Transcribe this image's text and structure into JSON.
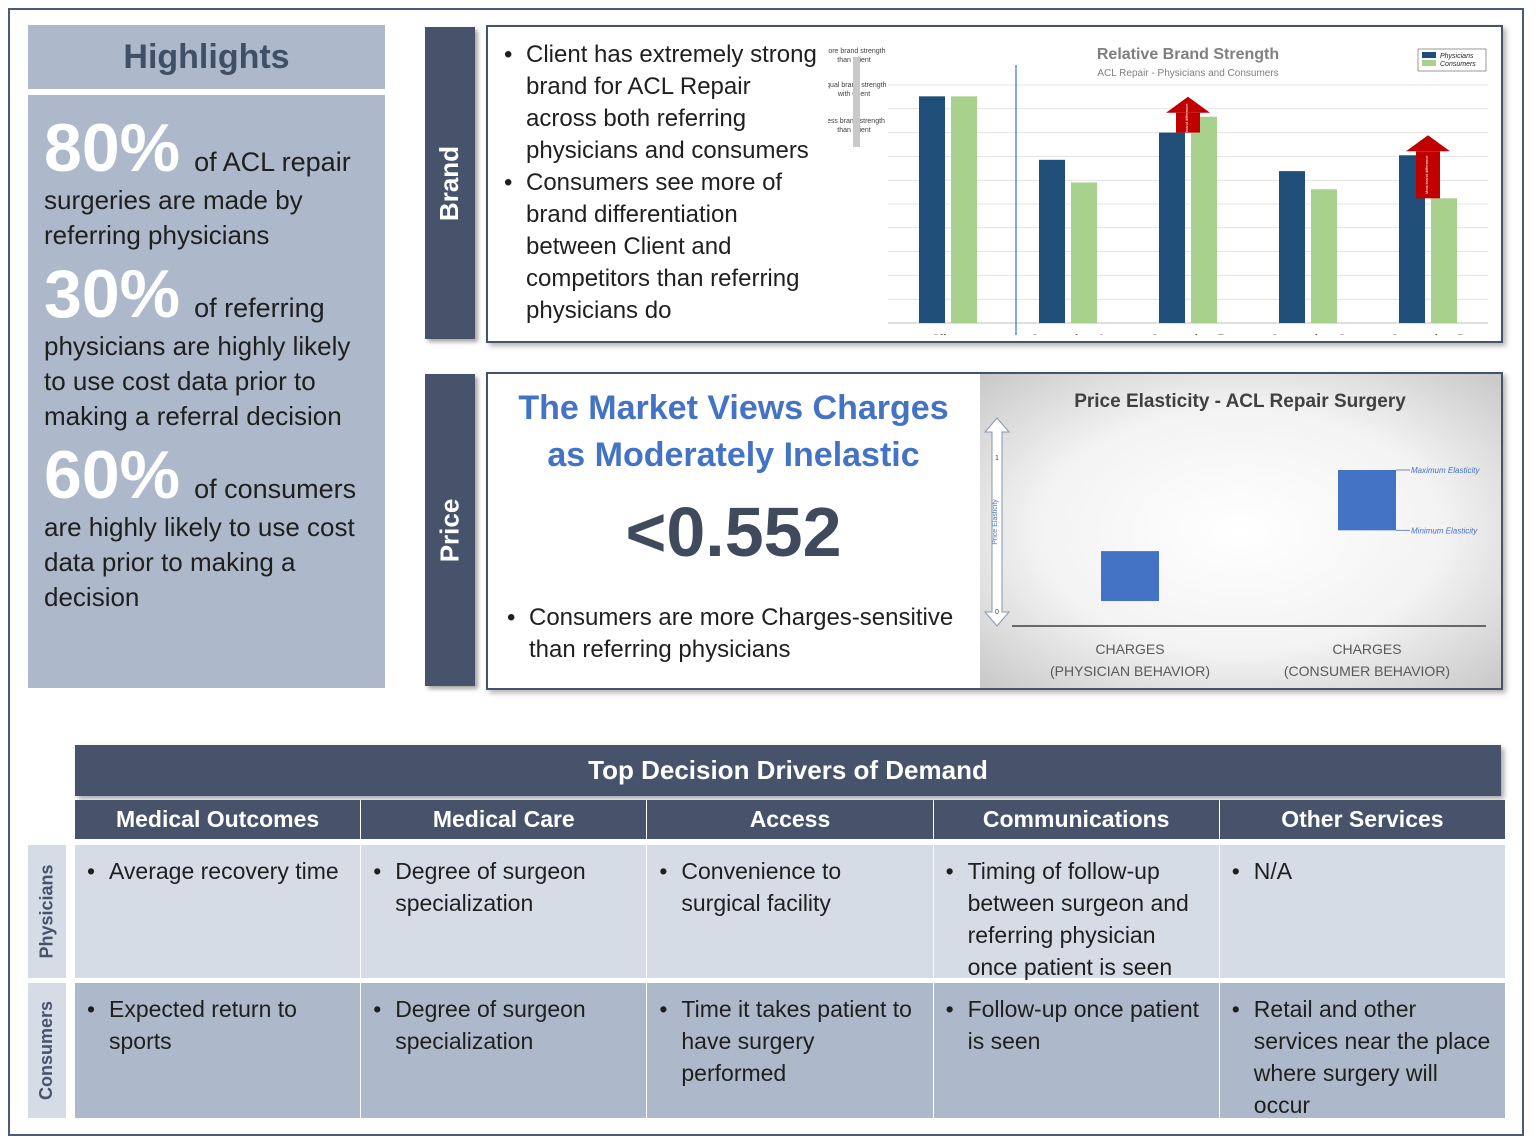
{
  "highlights": {
    "title": "Highlights",
    "stats": [
      {
        "value": "80%",
        "lead": "of ACL repair",
        "rest": "surgeries are made by referring physicians"
      },
      {
        "value": "30%",
        "lead": "of  referring",
        "rest": "physicians are highly likely to use cost data prior to making a referral decision"
      },
      {
        "value": "60%",
        "lead": "of consumers",
        "rest": "are highly likely to use cost data prior to making a decision"
      }
    ]
  },
  "brand": {
    "tab": "Brand",
    "bullets": [
      "Client has extremely strong brand for ACL Repair across both referring physicians and consumers",
      "Consumers see more of brand differentiation between Client and competitors than referring physicians do"
    ]
  },
  "price": {
    "tab": "Price",
    "title_line1": "The Market Views Charges",
    "title_line2": "as Moderately Inelastic",
    "value": "<0.552",
    "bullets": [
      "Consumers are more Charges-sensitive than referring physicians"
    ]
  },
  "chart_data": [
    {
      "type": "bar",
      "title": "Relative Brand Strength",
      "subtitle": "ACL Repair - Physicians and Consumers",
      "categories": [
        "Client",
        "Competitor A",
        "Competitor B",
        "Competitor C",
        "Competitor D"
      ],
      "series": [
        {
          "name": "Physicians",
          "values": [
            100,
            72,
            84,
            67,
            74
          ],
          "color": "#1f4e79"
        },
        {
          "name": "Consumers",
          "values": [
            100,
            62,
            91,
            59,
            55
          ],
          "color": "#a9d18e"
        }
      ],
      "ylim": [
        0,
        105
      ],
      "scale_labels": [
        "More brand strength than Client",
        "Equal brand strength with Client",
        "Less brand strength than Client"
      ],
      "arrow_labels": [
        "Less brand difference",
        "Most brand difference"
      ],
      "legend": "top-right",
      "grid": true
    },
    {
      "type": "bar",
      "title": "Price Elasticity - ACL Repair Surgery",
      "categories": [
        "CHARGES (PHYSICIAN BEHAVIOR)",
        "CHARGES (CONSUMER BEHAVIOR)"
      ],
      "ranges": [
        {
          "min": 0.12,
          "max": 0.36
        },
        {
          "min": 0.46,
          "max": 0.75
        }
      ],
      "ylim": [
        0,
        1
      ],
      "ylabel": "Price Elasticity",
      "yticks": [
        "0",
        "1"
      ],
      "range_labels": [
        "Maximum Elasticity",
        "Minimum Elasticity"
      ],
      "bar_color": "#4472c4"
    }
  ],
  "drivers": {
    "title": "Top Decision Drivers of Demand",
    "columns": [
      "Medical Outcomes",
      "Medical Care",
      "Access",
      "Communications",
      "Other Services"
    ],
    "rows": [
      {
        "label": "Physicians",
        "cells": [
          "Average recovery time",
          "Degree of surgeon specialization",
          "Convenience to surgical facility",
          "Timing of follow-up between surgeon and referring physician once patient is seen",
          "N/A"
        ]
      },
      {
        "label": "Consumers",
        "cells": [
          "Expected return to sports",
          "Degree of surgeon specialization",
          "Time it takes patient to have surgery performed",
          "Follow-up once patient is seen",
          "Retail and other services near the place where surgery will occur"
        ]
      }
    ]
  }
}
